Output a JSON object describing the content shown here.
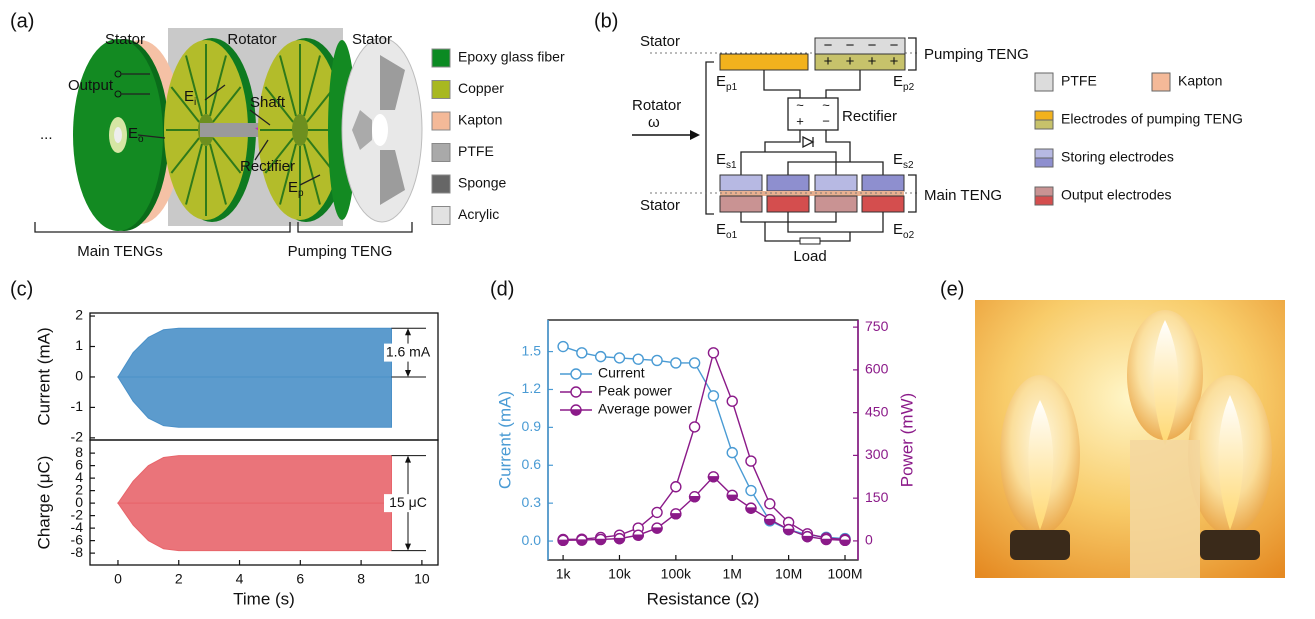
{
  "panel_labels": [
    "(a)",
    "(b)",
    "(c)",
    "(d)",
    "(e)"
  ],
  "panel_a": {
    "labels": {
      "stator_left": "Stator",
      "rotator": "Rotator",
      "stator_right": "Stator",
      "output": "Output",
      "ellipsis": "...",
      "shaft": "Shaft",
      "rectifier": "Rectifier",
      "main": "Main TENGs",
      "pumping": "Pumping TENG"
    },
    "electrodes": [
      {
        "base": "E",
        "sub": "i"
      },
      {
        "base": "E",
        "sub": "o"
      },
      {
        "base": "E",
        "sub": "p"
      }
    ],
    "legend": [
      {
        "name": "Epoxy glass fiber",
        "color": "#0b8a22"
      },
      {
        "name": "Copper",
        "color": "#a8b820"
      },
      {
        "name": "Kapton",
        "color": "#f4b998"
      },
      {
        "name": "PTFE",
        "color": "#a9a9a9"
      },
      {
        "name": "Sponge",
        "color": "#666666"
      },
      {
        "name": "Acrylic",
        "color": "#e2e2e2"
      }
    ]
  },
  "panel_b": {
    "labels": {
      "stator_top": "Stator",
      "rotator": "Rotator",
      "omega": "ω",
      "pumping": "Pumping TENG",
      "rectifier": "Rectifier",
      "main": "Main TENG",
      "stator_bottom": "Stator",
      "load": "Load"
    },
    "symbols": {
      "minus": "−",
      "plus": "+",
      "ac": "~"
    },
    "electrodes": [
      {
        "base": "E",
        "sub": "p1"
      },
      {
        "base": "E",
        "sub": "p2"
      },
      {
        "base": "E",
        "sub": "s1"
      },
      {
        "base": "E",
        "sub": "s2"
      },
      {
        "base": "E",
        "sub": "o1"
      },
      {
        "base": "E",
        "sub": "o2"
      }
    ],
    "legend": [
      {
        "name": "PTFE",
        "colors": [
          "#dcdcdc"
        ]
      },
      {
        "name": "Kapton",
        "colors": [
          "#f4b998"
        ]
      },
      {
        "name": "Electrodes of pumping TENG",
        "colors": [
          "#f2b21d",
          "#c7c26b"
        ]
      },
      {
        "name": "Storing electrodes",
        "colors": [
          "#b7b9e3",
          "#8e8fcf"
        ]
      },
      {
        "name": "Output electrodes",
        "colors": [
          "#c99393",
          "#d44e4e"
        ]
      }
    ]
  },
  "chart_data": [
    {
      "type": "area",
      "ylabel": "Current (mA)",
      "x": [
        0,
        0.5,
        1,
        1.5,
        2,
        9
      ],
      "series": [
        {
          "color": "#4a90c8",
          "values": [
            0,
            0.8,
            1.3,
            1.55,
            1.6,
            1.6
          ]
        },
        {
          "color": "#4a90c8",
          "values": [
            0,
            -0.8,
            -1.35,
            -1.6,
            -1.65,
            -1.65
          ]
        }
      ],
      "xlim": [
        -0.92,
        10.53
      ],
      "ylim": [
        -2.07,
        2.1
      ],
      "yticks": [
        -2,
        -1,
        0,
        1,
        2
      ],
      "annotation": "1.6 mA"
    },
    {
      "type": "area",
      "xlabel": "Time (s)",
      "ylabel": "Charge (μC)",
      "x": [
        0,
        0.5,
        1,
        1.5,
        2,
        9
      ],
      "series": [
        {
          "color": "#e8656b",
          "values": [
            0,
            3.5,
            6,
            7.3,
            7.6,
            7.6
          ]
        },
        {
          "color": "#e8656b",
          "values": [
            0,
            -3.5,
            -6,
            -7.3,
            -7.6,
            -7.6
          ]
        }
      ],
      "xlim": [
        -0.92,
        10.53
      ],
      "xticks": [
        0,
        2,
        4,
        6,
        8,
        10
      ],
      "ylim": [
        -9.9,
        10.1
      ],
      "yticks": [
        -8,
        -6,
        -4,
        -2,
        0,
        2,
        4,
        6,
        8
      ],
      "annotation": "15 μC"
    },
    {
      "type": "line",
      "xlabel": "Resistance (Ω)",
      "ylabel": "Current (mA)",
      "y2label": "Power (mW)",
      "xlog": true,
      "legend": "upper-left",
      "y_axis_color": "#4a9bd4",
      "y2_axis_color": "#8b1a89",
      "x": [
        1000,
        2150,
        4640,
        10000,
        21500,
        46400,
        100000,
        215000,
        464000,
        1000000,
        2150000,
        4640000,
        10000000,
        21500000,
        46400000,
        100000000
      ],
      "series": [
        {
          "name": "Current",
          "color": "#4a9bd4",
          "marker": "open",
          "values": [
            1.54,
            1.49,
            1.46,
            1.45,
            1.44,
            1.43,
            1.41,
            1.41,
            1.15,
            0.7,
            0.4,
            0.16,
            0.09,
            0.05,
            0.03,
            0.02
          ]
        },
        {
          "name": "Peak power",
          "color": "#8b1a89",
          "marker": "open",
          "axis": "y2",
          "values": [
            5,
            6,
            12,
            20,
            45,
            100,
            190,
            400,
            660,
            490,
            280,
            130,
            65,
            25,
            10,
            5
          ]
        },
        {
          "name": "Average power",
          "color": "#8b1a89",
          "marker": "half",
          "axis": "y2",
          "values": [
            2,
            3,
            5,
            8,
            20,
            45,
            95,
            155,
            225,
            160,
            115,
            75,
            40,
            15,
            5,
            2
          ]
        }
      ],
      "xlim": [
        540,
        170000000
      ],
      "xticks": [
        {
          "value": 1000,
          "label": "1k"
        },
        {
          "value": 10000,
          "label": "10k"
        },
        {
          "value": 100000,
          "label": "100k"
        },
        {
          "value": 1000000,
          "label": "1M"
        },
        {
          "value": 10000000,
          "label": "10M"
        },
        {
          "value": 100000000,
          "label": "100M"
        }
      ],
      "ylim": [
        -0.15,
        1.75
      ],
      "yticks": [
        {
          "value": 0,
          "label": "0.0"
        },
        0.3,
        0.6,
        0.9,
        1.2,
        1.5
      ],
      "y2lim": [
        -67,
        775
      ],
      "y2ticks": [
        0,
        150,
        300,
        450,
        600,
        750
      ]
    }
  ]
}
